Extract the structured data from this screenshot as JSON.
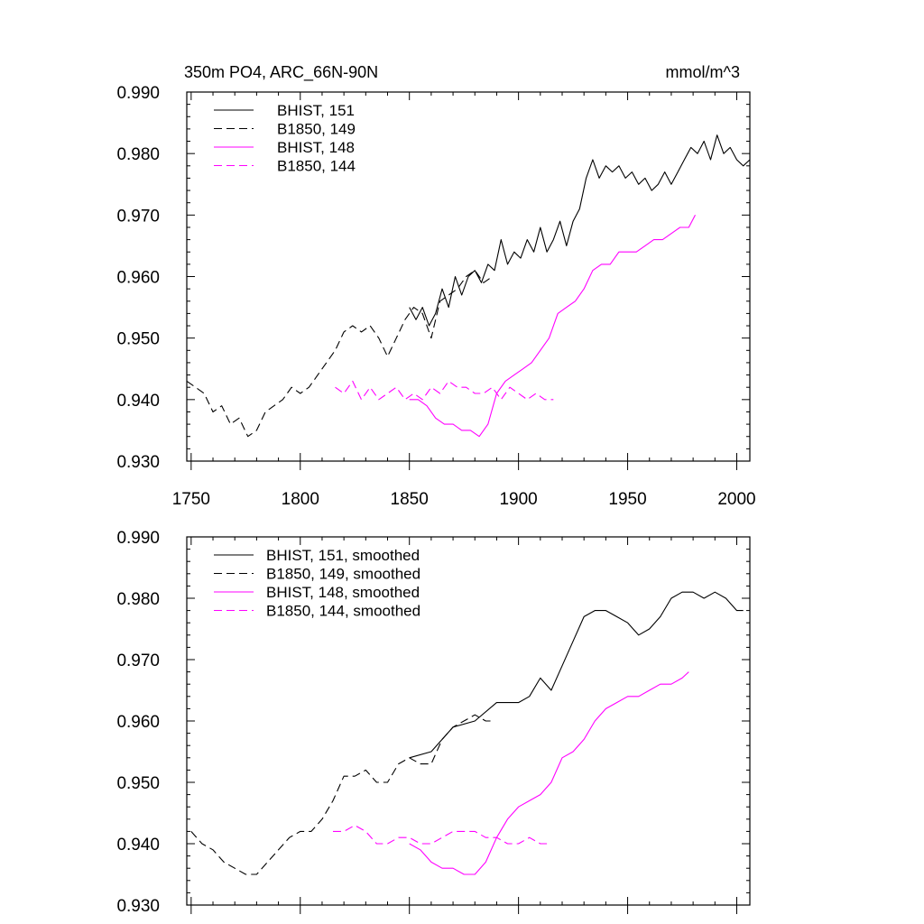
{
  "chart_data": [
    {
      "type": "line",
      "title": "350m PO4, ARC_66N-90N",
      "units": "mmol/m^3",
      "xlim": [
        1748,
        2006
      ],
      "ylim": [
        0.93,
        0.99
      ],
      "xticks": [
        1750,
        1800,
        1850,
        1900,
        1950,
        2000
      ],
      "xtick_labels": [
        "1750",
        "1800",
        "1850",
        "1900",
        "1950",
        "2000"
      ],
      "yticks": [
        0.93,
        0.94,
        0.95,
        0.96,
        0.97,
        0.98,
        0.99
      ],
      "ytick_labels": [
        "0.930",
        "0.940",
        "0.950",
        "0.960",
        "0.970",
        "0.980",
        "0.990"
      ],
      "legend_position": "top-left",
      "series": [
        {
          "name": "BHIST, 151",
          "color": "#000000",
          "dash": "solid",
          "x": [
            1850,
            1853,
            1856,
            1859,
            1862,
            1865,
            1868,
            1871,
            1874,
            1877,
            1880,
            1883,
            1886,
            1889,
            1892,
            1895,
            1898,
            1901,
            1904,
            1907,
            1910,
            1913,
            1916,
            1919,
            1922,
            1925,
            1928,
            1931,
            1934,
            1937,
            1940,
            1943,
            1946,
            1949,
            1952,
            1955,
            1958,
            1961,
            1964,
            1967,
            1970,
            1973,
            1976,
            1979,
            1982,
            1985,
            1988,
            1991,
            1994,
            1997,
            2000,
            2003,
            2006
          ],
          "y": [
            0.955,
            0.953,
            0.955,
            0.952,
            0.954,
            0.958,
            0.955,
            0.96,
            0.957,
            0.96,
            0.961,
            0.959,
            0.962,
            0.961,
            0.966,
            0.962,
            0.964,
            0.963,
            0.966,
            0.964,
            0.968,
            0.964,
            0.966,
            0.969,
            0.965,
            0.969,
            0.971,
            0.976,
            0.979,
            0.976,
            0.978,
            0.977,
            0.978,
            0.976,
            0.977,
            0.975,
            0.976,
            0.974,
            0.975,
            0.977,
            0.975,
            0.977,
            0.979,
            0.981,
            0.98,
            0.982,
            0.979,
            0.983,
            0.98,
            0.981,
            0.979,
            0.978,
            0.979
          ]
        },
        {
          "name": "B1850, 149",
          "color": "#000000",
          "dash": "dashed",
          "x": [
            1748,
            1752,
            1756,
            1760,
            1764,
            1768,
            1772,
            1776,
            1780,
            1784,
            1788,
            1792,
            1796,
            1800,
            1804,
            1808,
            1812,
            1816,
            1820,
            1824,
            1828,
            1832,
            1836,
            1840,
            1844,
            1848,
            1852,
            1856,
            1860,
            1864,
            1868,
            1872,
            1876,
            1880,
            1884,
            1888
          ],
          "y": [
            0.943,
            0.942,
            0.941,
            0.938,
            0.939,
            0.936,
            0.937,
            0.934,
            0.935,
            0.938,
            0.939,
            0.94,
            0.942,
            0.941,
            0.942,
            0.944,
            0.946,
            0.948,
            0.951,
            0.952,
            0.951,
            0.952,
            0.95,
            0.947,
            0.95,
            0.953,
            0.955,
            0.954,
            0.95,
            0.956,
            0.957,
            0.958,
            0.96,
            0.961,
            0.959,
            0.96
          ]
        },
        {
          "name": "BHIST, 148",
          "color": "#ff00ff",
          "dash": "solid",
          "x": [
            1850,
            1854,
            1858,
            1862,
            1866,
            1870,
            1874,
            1878,
            1882,
            1886,
            1890,
            1894,
            1898,
            1902,
            1906,
            1910,
            1914,
            1918,
            1922,
            1926,
            1930,
            1934,
            1938,
            1942,
            1946,
            1950,
            1954,
            1958,
            1962,
            1966,
            1970,
            1974,
            1978,
            1981
          ],
          "y": [
            0.94,
            0.94,
            0.939,
            0.937,
            0.936,
            0.936,
            0.935,
            0.935,
            0.934,
            0.936,
            0.941,
            0.943,
            0.944,
            0.945,
            0.946,
            0.948,
            0.95,
            0.954,
            0.955,
            0.956,
            0.958,
            0.961,
            0.962,
            0.962,
            0.964,
            0.964,
            0.964,
            0.965,
            0.966,
            0.966,
            0.967,
            0.968,
            0.968,
            0.97
          ]
        },
        {
          "name": "B1850, 144",
          "color": "#ff00ff",
          "dash": "dashed",
          "x": [
            1816,
            1820,
            1824,
            1828,
            1832,
            1836,
            1840,
            1844,
            1848,
            1852,
            1856,
            1860,
            1864,
            1868,
            1872,
            1876,
            1880,
            1884,
            1888,
            1892,
            1896,
            1900,
            1904,
            1908,
            1912,
            1916
          ],
          "y": [
            0.942,
            0.941,
            0.943,
            0.94,
            0.942,
            0.94,
            0.941,
            0.942,
            0.94,
            0.941,
            0.94,
            0.942,
            0.941,
            0.943,
            0.942,
            0.942,
            0.941,
            0.941,
            0.942,
            0.94,
            0.942,
            0.941,
            0.94,
            0.941,
            0.94,
            0.94
          ]
        }
      ]
    },
    {
      "type": "line",
      "title": "",
      "xlim": [
        1748,
        2006
      ],
      "ylim": [
        0.93,
        0.99
      ],
      "xticks": [
        1750,
        1800,
        1850,
        1900,
        1950,
        2000
      ],
      "yticks": [
        0.93,
        0.94,
        0.95,
        0.96,
        0.97,
        0.98,
        0.99
      ],
      "ytick_labels": [
        "0.930",
        "0.940",
        "0.950",
        "0.960",
        "0.970",
        "0.980",
        "0.990"
      ],
      "legend_position": "top-left",
      "series": [
        {
          "name": "BHIST, 151, smoothed",
          "color": "#000000",
          "dash": "solid",
          "x": [
            1850,
            1860,
            1870,
            1880,
            1890,
            1897,
            1900,
            1905,
            1910,
            1915,
            1920,
            1930,
            1935,
            1940,
            1945,
            1950,
            1955,
            1960,
            1965,
            1970,
            1975,
            1980,
            1985,
            1990,
            1995,
            2000,
            2003
          ],
          "y": [
            0.954,
            0.955,
            0.959,
            0.96,
            0.963,
            0.963,
            0.963,
            0.964,
            0.967,
            0.965,
            0.969,
            0.977,
            0.978,
            0.978,
            0.977,
            0.976,
            0.974,
            0.975,
            0.977,
            0.98,
            0.981,
            0.981,
            0.98,
            0.981,
            0.98,
            0.978,
            0.978
          ]
        },
        {
          "name": "B1850, 149, smoothed",
          "color": "#000000",
          "dash": "dashed",
          "x": [
            1750,
            1755,
            1760,
            1765,
            1770,
            1775,
            1780,
            1785,
            1790,
            1795,
            1800,
            1805,
            1810,
            1815,
            1820,
            1825,
            1830,
            1835,
            1840,
            1845,
            1850,
            1855,
            1860,
            1865,
            1870,
            1875,
            1880,
            1885,
            1888
          ],
          "y": [
            0.942,
            0.94,
            0.939,
            0.937,
            0.936,
            0.935,
            0.935,
            0.937,
            0.939,
            0.941,
            0.942,
            0.942,
            0.944,
            0.947,
            0.951,
            0.951,
            0.952,
            0.95,
            0.95,
            0.953,
            0.954,
            0.953,
            0.953,
            0.957,
            0.959,
            0.96,
            0.961,
            0.96,
            0.96
          ]
        },
        {
          "name": "BHIST, 148, smoothed",
          "color": "#ff00ff",
          "dash": "solid",
          "x": [
            1850,
            1855,
            1860,
            1865,
            1870,
            1875,
            1880,
            1885,
            1890,
            1895,
            1900,
            1905,
            1910,
            1915,
            1920,
            1925,
            1930,
            1935,
            1940,
            1945,
            1950,
            1955,
            1960,
            1965,
            1970,
            1975,
            1978
          ],
          "y": [
            0.94,
            0.939,
            0.937,
            0.936,
            0.936,
            0.935,
            0.935,
            0.937,
            0.941,
            0.944,
            0.946,
            0.947,
            0.948,
            0.95,
            0.954,
            0.955,
            0.957,
            0.96,
            0.962,
            0.963,
            0.964,
            0.964,
            0.965,
            0.966,
            0.966,
            0.967,
            0.968
          ]
        },
        {
          "name": "B1850, 144, smoothed",
          "color": "#ff00ff",
          "dash": "dashed",
          "x": [
            1815,
            1820,
            1825,
            1830,
            1835,
            1840,
            1845,
            1850,
            1855,
            1860,
            1865,
            1870,
            1875,
            1880,
            1885,
            1890,
            1895,
            1900,
            1905,
            1910,
            1915
          ],
          "y": [
            0.942,
            0.942,
            0.943,
            0.942,
            0.94,
            0.94,
            0.941,
            0.941,
            0.94,
            0.94,
            0.941,
            0.942,
            0.942,
            0.942,
            0.941,
            0.941,
            0.94,
            0.94,
            0.941,
            0.94,
            0.94
          ]
        }
      ]
    }
  ]
}
